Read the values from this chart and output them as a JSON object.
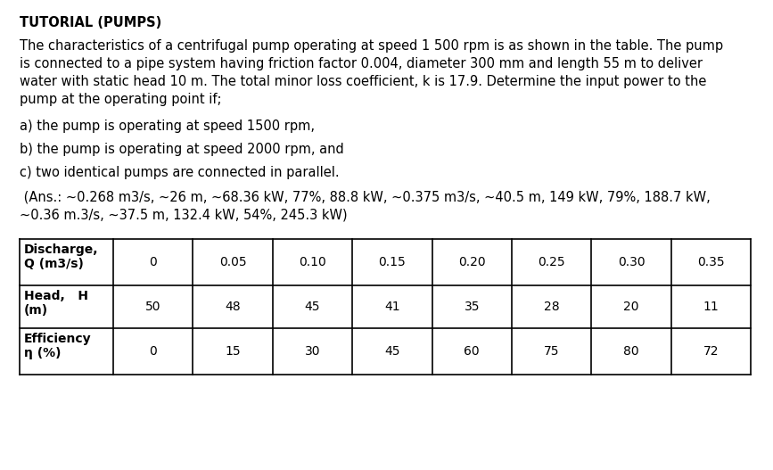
{
  "title": "TUTORIAL (PUMPS)",
  "paragraph_lines": [
    "The characteristics of a centrifugal pump operating at speed 1 500 rpm is as shown in the table. The pump",
    "is connected to a pipe system having friction factor 0.004, diameter 300 mm and length 55 m to deliver",
    "water with static head 10 m. The total minor loss coefficient, k is 17.9. Determine the input power to the",
    "pump at the operating point if;"
  ],
  "items": [
    "a) the pump is operating at speed 1500 rpm,",
    "b) the pump is operating at speed 2000 rpm, and",
    "c) two identical pumps are connected in parallel."
  ],
  "answer_lines": [
    " (Ans.: ~0.268 m3/s, ~26 m, ~68.36 kW, 77%, 88.8 kW, ~0.375 m3/s, ~40.5 m, 149 kW, 79%, 188.7 kW,",
    "~0.36 m.3/s, ~37.5 m, 132.4 kW, 54%, 245.3 kW)"
  ],
  "table_headers": [
    "Discharge,\nQ (m3/s)",
    "0",
    "0.05",
    "0.10",
    "0.15",
    "0.20",
    "0.25",
    "0.30",
    "0.35"
  ],
  "row1_label": "Head,   H\n(m)",
  "row1_values": [
    "50",
    "48",
    "45",
    "41",
    "35",
    "28",
    "20",
    "11"
  ],
  "row2_label": "Efficiency\nη (%)",
  "row2_values": [
    "0",
    "15",
    "30",
    "45",
    "60",
    "75",
    "80",
    "72"
  ],
  "bg_color": "#ffffff",
  "text_color": "#000000",
  "title_fontsize": 10.5,
  "body_fontsize": 10.5,
  "table_fontsize": 10.0
}
